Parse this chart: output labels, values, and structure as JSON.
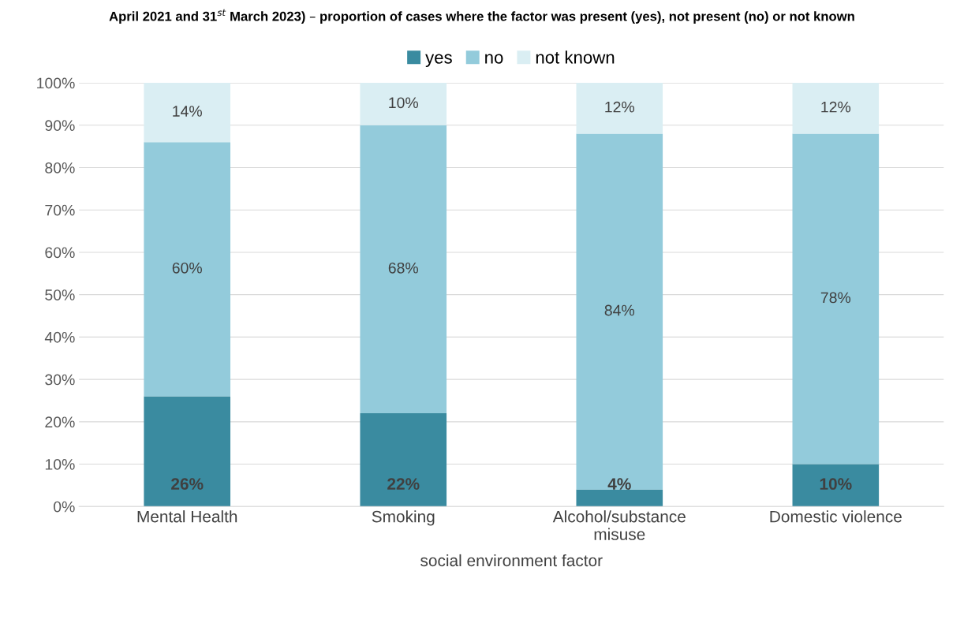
{
  "chart_data": {
    "type": "bar",
    "stacked": true,
    "title": "April 2021 and 31$^{st}$ March 2023) – proportion of cases where the factor was present (yes), not present (no) or not known",
    "xlabel": "social environment factor",
    "categories": [
      "Mental Health",
      "Smoking",
      "Alcohol/substance\nmisuse",
      "Domestic violence"
    ],
    "series": [
      {
        "name": "yes",
        "color": "#3a8ba0",
        "values": [
          26,
          22,
          4,
          10
        ],
        "value_labels": [
          "26%",
          "22%",
          "4%",
          "10%"
        ]
      },
      {
        "name": "no",
        "color": "#93cbdb",
        "values": [
          60,
          68,
          84,
          78
        ],
        "value_labels": [
          "60%",
          "68%",
          "84%",
          "78%"
        ]
      },
      {
        "name": "not known",
        "color": "#daeef3",
        "values": [
          14,
          10,
          12,
          12
        ],
        "value_labels": [
          "14%",
          "10%",
          "12%",
          "12%"
        ]
      }
    ],
    "ylim": [
      0,
      100
    ],
    "yticks": [
      {
        "value": 0,
        "label": "0%"
      },
      {
        "value": 10,
        "label": "10%"
      },
      {
        "value": 20,
        "label": "20%"
      },
      {
        "value": 30,
        "label": "30%"
      },
      {
        "value": 40,
        "label": "40%"
      },
      {
        "value": 50,
        "label": "50%"
      },
      {
        "value": 60,
        "label": "60%"
      },
      {
        "value": 70,
        "label": "70%"
      },
      {
        "value": 80,
        "label": "80%"
      },
      {
        "value": 90,
        "label": "90%"
      },
      {
        "value": 100,
        "label": "100%"
      }
    ],
    "grid": "y",
    "legend": "top"
  }
}
